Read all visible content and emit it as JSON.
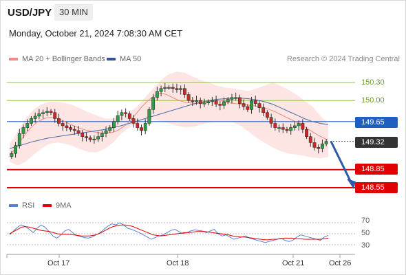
{
  "header": {
    "symbol": "USD/JPY",
    "timeframe": "30 MIN"
  },
  "datetime": "Monday, October 21, 2024 7:08:30 AM CET",
  "legend": [
    {
      "label": "MA 20 + Bollinger Bands",
      "color": "#f28b82"
    },
    {
      "label": "MA 50",
      "color": "#2f5597"
    }
  ],
  "credit": "Research © 2024 Trading Central",
  "rsi_legend": [
    {
      "label": "RSI",
      "color": "#5b7fd6"
    },
    {
      "label": "9MA",
      "color": "#e00000"
    }
  ],
  "colors": {
    "resistance": "#8bc34a",
    "support": "#e00000",
    "pivot": "#1f5fbf",
    "last": "#333333",
    "arrow": "#2e5aa8"
  },
  "chart_data": [
    {
      "type": "line",
      "description_series": "price (candles)",
      "y_range": [
        148.4,
        150.6
      ],
      "x_ticks": [
        "Oct 17",
        "Oct 18",
        "Oct 21",
        "Oct 26"
      ],
      "levels": [
        {
          "value": "150.30",
          "kind": "resistance",
          "style": "line",
          "y": 150.3
        },
        {
          "value": "150.00",
          "kind": "resistance",
          "style": "line",
          "y": 150.0
        },
        {
          "value": "149.65",
          "kind": "pivot",
          "style": "box",
          "y": 149.65
        },
        {
          "value": "149.32",
          "kind": "last",
          "style": "box",
          "y": 149.32
        },
        {
          "value": "148.85",
          "kind": "support",
          "style": "box",
          "y": 148.85
        },
        {
          "value": "148.55",
          "kind": "support",
          "style": "box",
          "y": 148.55
        }
      ],
      "price": [
        149.12,
        149.25,
        149.45,
        149.55,
        149.62,
        149.7,
        149.74,
        149.78,
        149.8,
        149.82,
        149.8,
        149.7,
        149.62,
        149.58,
        149.55,
        149.52,
        149.5,
        149.46,
        149.4,
        149.38,
        149.35,
        149.36,
        149.4,
        149.45,
        149.5,
        149.55,
        149.65,
        149.75,
        149.8,
        149.78,
        149.7,
        149.62,
        149.55,
        149.5,
        149.62,
        149.85,
        150.05,
        150.15,
        150.2,
        150.22,
        150.22,
        150.2,
        150.18,
        150.2,
        150.1,
        150.0,
        149.98,
        150.0,
        149.95,
        149.96,
        149.98,
        150.0,
        149.94,
        149.92,
        149.98,
        150.02,
        150.05,
        150.05,
        149.95,
        149.9,
        149.85,
        150.0,
        149.95,
        149.88,
        149.8,
        149.72,
        149.62,
        149.55,
        149.55,
        149.52,
        149.5,
        149.55,
        149.58,
        149.62,
        149.52,
        149.4,
        149.3,
        149.22,
        149.2,
        149.28,
        149.32
      ],
      "ma20": [
        149.1,
        149.18,
        149.3,
        149.42,
        149.52,
        149.6,
        149.66,
        149.7,
        149.72,
        149.72,
        149.7,
        149.66,
        149.62,
        149.58,
        149.55,
        149.52,
        149.5,
        149.48,
        149.47,
        149.46,
        149.46,
        149.47,
        149.5,
        149.55,
        149.62,
        149.7,
        149.8,
        149.9,
        149.98,
        150.05,
        150.1,
        150.12,
        150.1,
        150.06,
        150.02,
        149.99,
        149.97,
        149.96,
        149.95,
        149.96,
        149.98,
        149.99,
        150.0,
        150.0,
        149.98,
        149.96,
        149.95,
        149.94,
        149.93,
        149.92,
        149.91,
        149.9,
        149.88,
        149.85,
        149.82,
        149.78,
        149.74,
        149.7,
        149.66,
        149.62,
        149.57,
        149.52,
        149.47,
        149.42,
        149.38,
        149.34
      ],
      "ma50": [
        149.2,
        149.24,
        149.28,
        149.32,
        149.35,
        149.38,
        149.4,
        149.42,
        149.44,
        149.46,
        149.48,
        149.5,
        149.52,
        149.55,
        149.58,
        149.62,
        149.66,
        149.7,
        149.74,
        149.78,
        149.82,
        149.86,
        149.9,
        149.94,
        149.97,
        150.0,
        150.02,
        150.03,
        150.04,
        150.04,
        150.03,
        150.01,
        149.98,
        149.94,
        149.88,
        149.82,
        149.76,
        149.7,
        149.65,
        149.62,
        149.6
      ],
      "bb_upper": [
        149.28,
        149.48,
        149.7,
        149.85,
        149.94,
        149.98,
        149.98,
        149.96,
        149.92,
        149.86,
        149.8,
        149.75,
        149.7,
        149.7,
        149.74,
        149.8,
        149.9,
        150.05,
        150.2,
        150.34,
        150.44,
        150.48,
        150.46,
        150.4,
        150.34,
        150.3,
        150.25,
        150.22,
        150.2,
        150.18,
        150.16,
        150.2,
        150.25,
        150.3,
        150.25,
        150.18,
        150.1,
        150.0,
        149.9,
        149.75,
        149.62
      ],
      "bb_lower": [
        148.98,
        148.92,
        148.98,
        149.1,
        149.2,
        149.28,
        149.3,
        149.28,
        149.24,
        149.18,
        149.14,
        149.14,
        149.2,
        149.3,
        149.45,
        149.55,
        149.62,
        149.66,
        149.68,
        149.66,
        149.62,
        149.58,
        149.55,
        149.56,
        149.6,
        149.63,
        149.65,
        149.66,
        149.64,
        149.58,
        149.48,
        149.38,
        149.3,
        149.22,
        149.16,
        149.12,
        149.1,
        149.08,
        149.05,
        149.04,
        149.06
      ],
      "arrow_to": 148.55
    },
    {
      "type": "line",
      "y_range": [
        20,
        80
      ],
      "y_ticks": [
        "70",
        "50",
        "30"
      ],
      "series": [
        {
          "name": "RSI",
          "values": [
            48,
            55,
            62,
            66,
            63,
            58,
            52,
            60,
            66,
            62,
            54,
            46,
            42,
            48,
            55,
            58,
            52,
            47,
            45,
            43,
            42,
            44,
            48,
            52,
            58,
            64,
            68,
            66,
            70,
            66,
            60,
            58,
            55,
            52,
            48,
            44,
            40,
            43,
            46,
            48,
            52,
            56,
            58,
            54,
            50,
            52,
            55,
            57,
            56,
            55,
            52,
            55,
            58,
            50,
            46,
            48,
            44,
            40,
            42,
            44,
            46,
            42,
            40,
            38,
            36,
            34,
            36,
            38,
            40,
            42,
            38,
            36,
            38,
            44,
            48,
            46,
            44,
            42,
            40,
            38,
            44,
            47
          ]
        },
        {
          "name": "9MA",
          "values": [
            50,
            54,
            58,
            62,
            63,
            62,
            60,
            58,
            56,
            55,
            54,
            52,
            50,
            49,
            49,
            49,
            48,
            47,
            46,
            46,
            46,
            47,
            49,
            52,
            56,
            60,
            63,
            65,
            66,
            66,
            65,
            63,
            60,
            57,
            54,
            51,
            48,
            47,
            46,
            47,
            48,
            49,
            50,
            51,
            52,
            52,
            53,
            54,
            54,
            54,
            53,
            52,
            51,
            50,
            49,
            48,
            46,
            45,
            44,
            44,
            43,
            42,
            41,
            40,
            39,
            39,
            40,
            40,
            41,
            42,
            42,
            42,
            41,
            41,
            40,
            40,
            40,
            40,
            40,
            41,
            42
          ]
        }
      ]
    }
  ],
  "x_labels": [
    "Oct 17",
    "Oct 18",
    "Oct 21",
    "Oct 26"
  ],
  "rsi_ticks": [
    "70",
    "50",
    "30"
  ]
}
